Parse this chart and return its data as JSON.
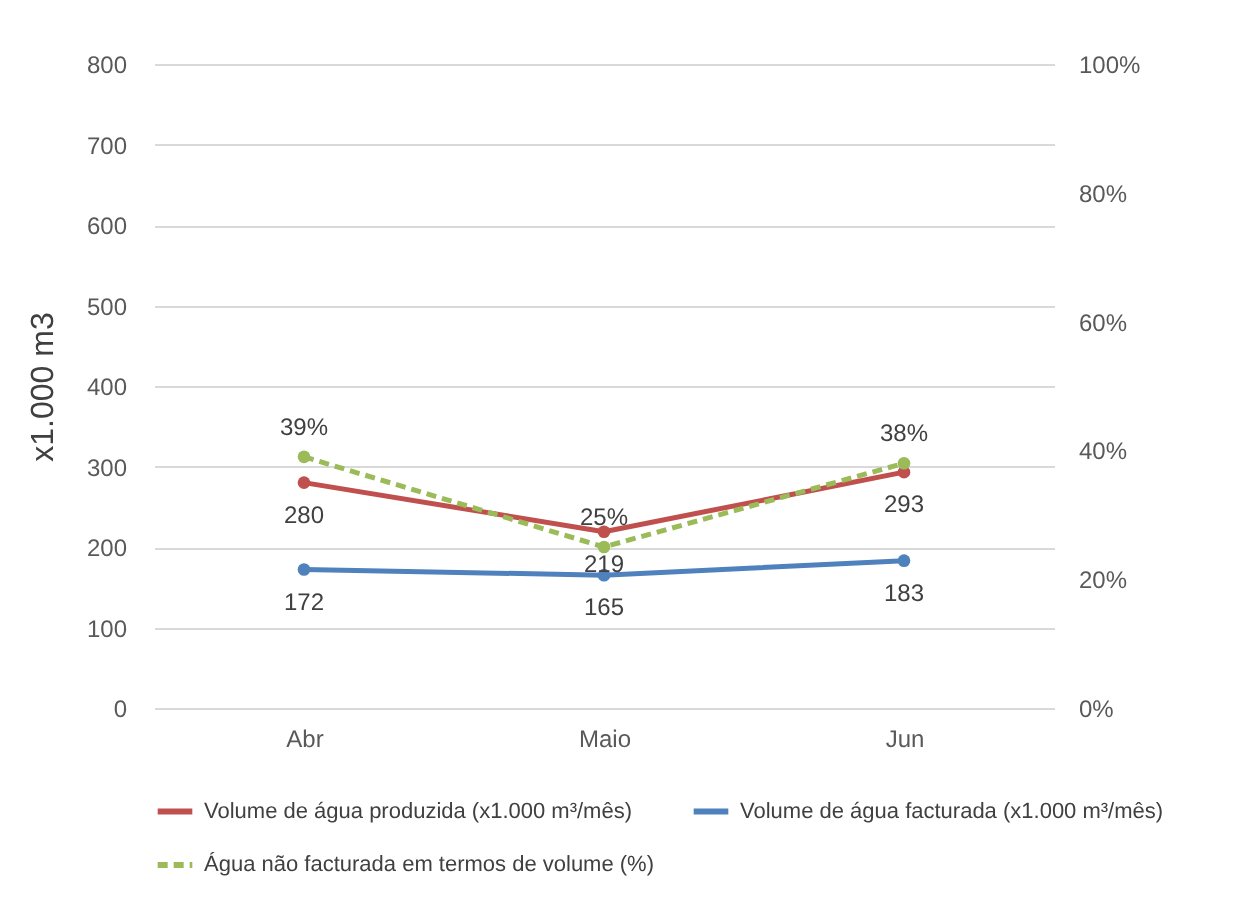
{
  "chart_data": {
    "type": "line",
    "ylabel": "x1.000 m3",
    "categories": [
      "Abr",
      "Maio",
      "Jun"
    ],
    "ylim": [
      0,
      800
    ],
    "yticks": [
      0,
      100,
      200,
      300,
      400,
      500,
      600,
      700,
      800
    ],
    "y2lim": [
      0,
      100
    ],
    "y2ticks": [
      {
        "value": 0,
        "label": "0%"
      },
      {
        "value": 20,
        "label": "20%"
      },
      {
        "value": 40,
        "label": "40%"
      },
      {
        "value": 60,
        "label": "60%"
      },
      {
        "value": 80,
        "label": "80%"
      },
      {
        "value": 100,
        "label": "100%"
      }
    ],
    "grid": "y",
    "legend": "bottom",
    "marker": "circle",
    "series": [
      {
        "name": "Volume de água produzida (x1.000 m³/mês)",
        "color": "#c0504d",
        "values": [
          280,
          219,
          293
        ],
        "value_labels": [
          "280",
          "219",
          "293"
        ],
        "line_style": "solid"
      },
      {
        "name": "Volume de água facturada (x1.000 m³/mês)",
        "color": "#4f81bd",
        "values": [
          172,
          165,
          183
        ],
        "value_labels": [
          "172",
          "165",
          "183"
        ],
        "line_style": "solid"
      },
      {
        "name": "Água não facturada em termos de volume (%)",
        "color": "#9bbb59",
        "values": [
          39,
          25,
          38
        ],
        "value_labels": [
          "39%",
          "25%",
          "38%"
        ],
        "axis": "y2",
        "line_style": "dashed"
      }
    ]
  }
}
